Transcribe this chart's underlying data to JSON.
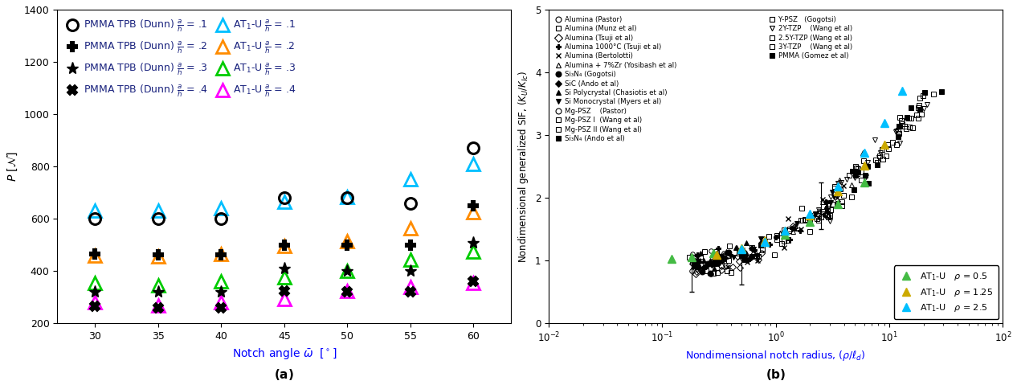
{
  "panel_a": {
    "xlabel": "Notch angle $\\bar{\\omega}$  $[^\\circ]$",
    "ylabel": "$P$ $[\\mathcal{N}]$",
    "ylim": [
      200,
      1400
    ],
    "xlim": [
      27,
      63
    ],
    "xticks": [
      30,
      35,
      40,
      45,
      50,
      55,
      60
    ],
    "yticks": [
      200,
      400,
      600,
      800,
      1000,
      1200,
      1400
    ],
    "angles": [
      30,
      35,
      40,
      45,
      50,
      55,
      60
    ],
    "pmma_a01": [
      600,
      600,
      600,
      680,
      680,
      660,
      870
    ],
    "pmma_a02": [
      465,
      462,
      462,
      500,
      500,
      500,
      650
    ],
    "pmma_a03": [
      320,
      320,
      320,
      410,
      400,
      400,
      510
    ],
    "pmma_a04": [
      265,
      260,
      260,
      325,
      320,
      320,
      360
    ],
    "at1u_a01": [
      630,
      630,
      640,
      665,
      685,
      750,
      810
    ],
    "at1u_a02": [
      460,
      455,
      465,
      495,
      515,
      565,
      625
    ],
    "at1u_a03": [
      355,
      345,
      360,
      375,
      400,
      445,
      475
    ],
    "at1u_a04": [
      280,
      270,
      280,
      295,
      325,
      340,
      355
    ],
    "color_cyan": "#00BFFF",
    "color_orange": "#FF8C00",
    "color_green": "#00CC00",
    "color_magenta": "#FF00FF",
    "legend_text_color": "#1a237e"
  },
  "panel_b": {
    "xlabel": "Nondimensional notch radius, $(\\rho/\\ell_d)$",
    "ylabel": "Nondimensional generalized SIF, $(K_U/K_{Ic})$",
    "ylim": [
      0,
      5
    ],
    "yticks": [
      0,
      1,
      2,
      3,
      4,
      5
    ],
    "color_green": "#44BB44",
    "color_yellow": "#CCAA00",
    "color_cyan": "#00BFFF"
  }
}
